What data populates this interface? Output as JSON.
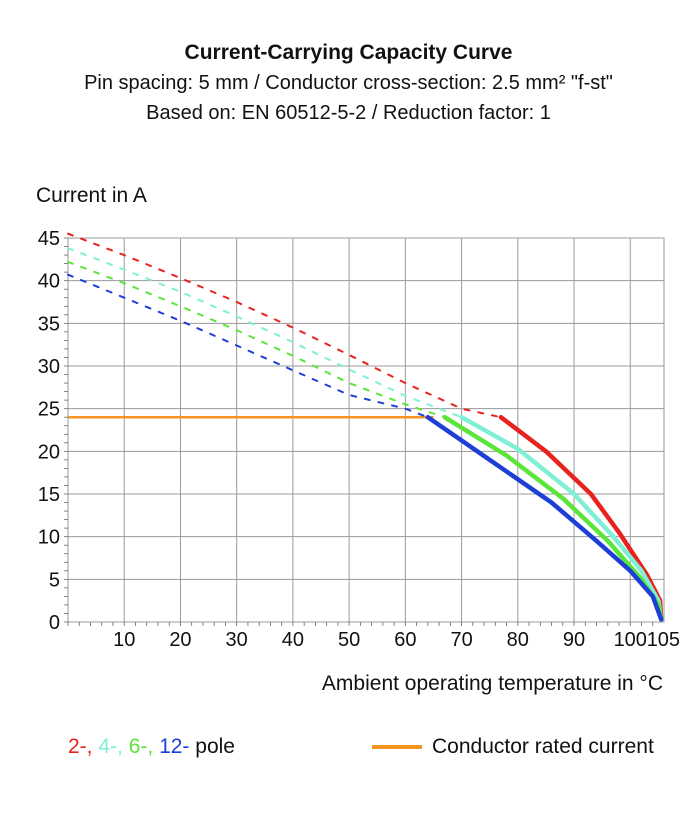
{
  "header": {
    "title": "Current-Carrying Capacity Curve",
    "subtitle_line1": "Pin spacing: 5 mm / Conductor cross-section: 2.5 mm² \"f-st\"",
    "subtitle_line2": "Based on: EN 60512-5-2 / Reduction factor: 1"
  },
  "legend": {
    "pole_items": [
      {
        "text": "2-,",
        "color": "#e8231f"
      },
      {
        "text": "4-,",
        "color": "#7ff0d6"
      },
      {
        "text": "6-,",
        "color": "#5be53a"
      },
      {
        "text": "12-",
        "color": "#1e3fd6"
      }
    ],
    "pole_suffix": "pole",
    "rated_label": "Conductor rated current",
    "rated_color": "#f5941f"
  },
  "chart_data": {
    "type": "line",
    "title": "Current-Carrying Capacity Curve",
    "xlabel": "Ambient operating temperature in °C",
    "ylabel": "Current in A",
    "xlim": [
      0,
      106
    ],
    "ylim": [
      0,
      45
    ],
    "x_ticks": [
      "10",
      "20",
      "30",
      "40",
      "50",
      "60",
      "70",
      "80",
      "90",
      "100",
      "105"
    ],
    "y_ticks": [
      "0",
      "5",
      "10",
      "15",
      "20",
      "25",
      "30",
      "35",
      "40",
      "45"
    ],
    "grid": true,
    "rated_current": {
      "name": "Conductor rated current",
      "value": 24,
      "x_range": [
        0,
        65
      ],
      "color": "#f5941f"
    },
    "series": [
      {
        "name": "2-",
        "color": "#e8231f",
        "dashed": [
          [
            0,
            45.5
          ],
          [
            10,
            43
          ],
          [
            20,
            40.3
          ],
          [
            30,
            37.5
          ],
          [
            40,
            34.5
          ],
          [
            50,
            31.3
          ],
          [
            60,
            28
          ],
          [
            70,
            25
          ],
          [
            77,
            24
          ]
        ],
        "solid": [
          [
            77,
            24
          ],
          [
            85,
            20
          ],
          [
            93,
            15
          ],
          [
            98,
            10.5
          ],
          [
            103,
            5.5
          ],
          [
            105.3,
            2.5
          ],
          [
            105.5,
            0.3
          ]
        ]
      },
      {
        "name": "4-",
        "color": "#7ff0d6",
        "dashed": [
          [
            0,
            43.8
          ],
          [
            10,
            41.3
          ],
          [
            20,
            38.7
          ],
          [
            30,
            35.8
          ],
          [
            40,
            32.8
          ],
          [
            50,
            29.6
          ],
          [
            60,
            26.5
          ],
          [
            70,
            24
          ]
        ],
        "solid": [
          [
            70,
            24
          ],
          [
            80,
            20.3
          ],
          [
            90,
            15
          ],
          [
            97,
            10
          ],
          [
            102,
            6
          ],
          [
            105,
            2.5
          ],
          [
            105.5,
            0.3
          ]
        ]
      },
      {
        "name": "6-",
        "color": "#5be53a",
        "dashed": [
          [
            0,
            42.2
          ],
          [
            10,
            39.7
          ],
          [
            20,
            37
          ],
          [
            30,
            34.2
          ],
          [
            40,
            31.2
          ],
          [
            50,
            28
          ],
          [
            60,
            25.5
          ],
          [
            67,
            24
          ]
        ],
        "solid": [
          [
            67,
            24
          ],
          [
            78,
            19.5
          ],
          [
            88,
            14.5
          ],
          [
            96,
            9.5
          ],
          [
            102,
            5
          ],
          [
            105,
            2
          ],
          [
            105.5,
            0.3
          ]
        ]
      },
      {
        "name": "12-",
        "color": "#1e3fd6",
        "dashed": [
          [
            0,
            40.7
          ],
          [
            10,
            38
          ],
          [
            20,
            35.3
          ],
          [
            30,
            32.4
          ],
          [
            40,
            29.5
          ],
          [
            50,
            26.6
          ],
          [
            60,
            25
          ],
          [
            64,
            24
          ]
        ],
        "solid": [
          [
            64,
            24
          ],
          [
            75,
            19
          ],
          [
            86,
            14
          ],
          [
            94,
            9.5
          ],
          [
            100,
            6
          ],
          [
            104,
            3
          ],
          [
            105.5,
            0.3
          ]
        ]
      }
    ]
  }
}
